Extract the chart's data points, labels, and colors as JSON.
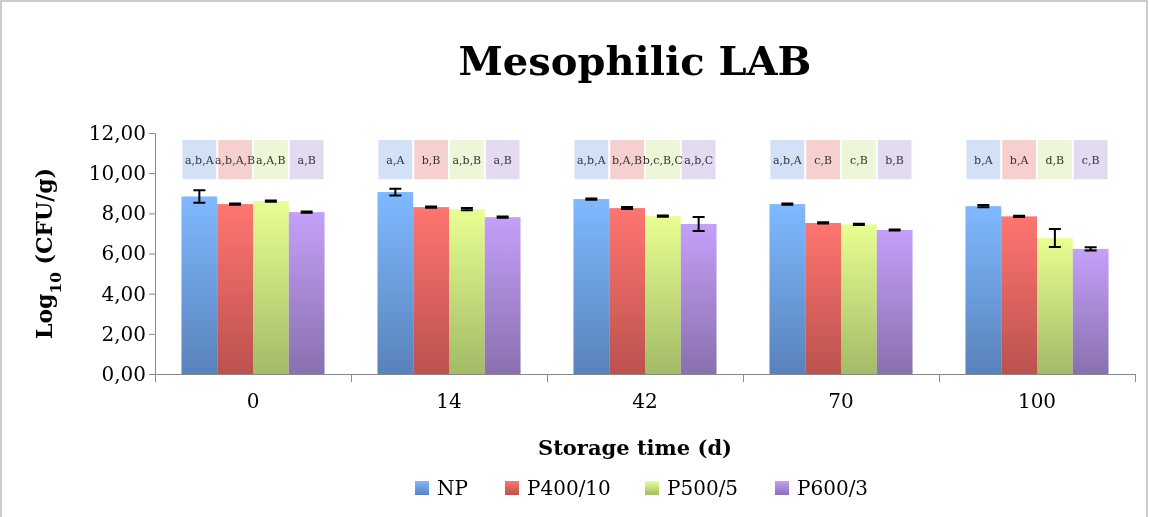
{
  "chart_data": {
    "type": "bar",
    "title": "Mesophilic LAB",
    "xlabel": "Storage time (d)",
    "ylabel": "Log$_{10}$ (CFU/g)",
    "categories": [
      "0",
      "14",
      "42",
      "70",
      "100"
    ],
    "series": [
      {
        "name": "NP",
        "color": "#6a9be0",
        "values": [
          8.84,
          9.06,
          8.71,
          8.46,
          8.36
        ],
        "errors": [
          0.31,
          0.17,
          0.03,
          0.03,
          0.06
        ]
      },
      {
        "name": "P400/10",
        "color": "#e0625e",
        "values": [
          8.46,
          8.31,
          8.26,
          7.52,
          7.85
        ],
        "errors": [
          0.03,
          0.03,
          0.05,
          0.03,
          0.03
        ]
      },
      {
        "name": "P500/5",
        "color": "#c2e07a",
        "values": [
          8.61,
          8.21,
          7.86,
          7.45,
          6.77
        ],
        "errors": [
          0.03,
          0.06,
          0.03,
          0.03,
          0.45
        ]
      },
      {
        "name": "P600/3",
        "color": "#a486d0",
        "values": [
          8.06,
          7.81,
          7.47,
          7.17,
          6.23
        ],
        "errors": [
          0.03,
          0.03,
          0.35,
          0.03,
          0.08
        ]
      }
    ],
    "annotations": [
      "a,b,A",
      "a,b,A,B",
      "a,A,B",
      "a,B",
      "a,A",
      "b,B",
      "a,b,B",
      "a,B",
      "a,b,A",
      "b,A,B",
      "b,c,B,C",
      "a,b,C",
      "a,b,A",
      "c,B",
      "c,B",
      "b,B",
      "b,A",
      "b,A",
      "d,B",
      "c,B"
    ],
    "ylim": [
      0,
      12
    ],
    "yticks": [
      {
        "value": 0,
        "label": "0,00"
      },
      {
        "value": 2,
        "label": "2,00"
      },
      {
        "value": 4,
        "label": "4,00"
      },
      {
        "value": 6,
        "label": "6,00"
      },
      {
        "value": 8,
        "label": "8,00"
      },
      {
        "value": 10,
        "label": "10,00"
      },
      {
        "value": 12,
        "label": "12,00"
      }
    ],
    "grid": false,
    "legend": "bottom"
  }
}
